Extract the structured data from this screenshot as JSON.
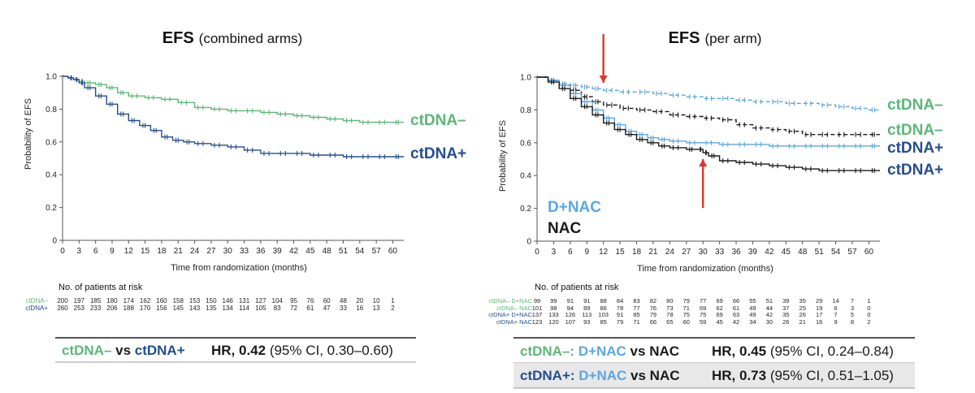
{
  "colors": {
    "ctdna_neg": "#5cb777",
    "ctdna_pos": "#254e8f",
    "dnac": "#5aa6e6",
    "nac": "#1a1a1a",
    "arrow": "#e2332a"
  },
  "chart_data": [
    {
      "type": "line",
      "title": "EFS",
      "subtitle": "(combined arms)",
      "xlabel": "Time from randomization (months)",
      "ylabel": "Probability of EFS",
      "xlim": [
        0,
        62
      ],
      "ylim": [
        0,
        1.0
      ],
      "xticks": [
        0,
        3,
        6,
        9,
        12,
        15,
        18,
        21,
        24,
        27,
        30,
        33,
        36,
        39,
        42,
        45,
        48,
        51,
        54,
        57,
        60
      ],
      "yticks": [
        "0",
        "0.2",
        "0.4",
        "0.6",
        "0.8",
        "1.0"
      ],
      "series": [
        {
          "name": "ctDNA–",
          "color": "#5cb777",
          "dashed": false,
          "x": [
            0,
            1,
            2,
            3,
            4,
            6,
            8,
            10,
            12,
            15,
            18,
            21,
            24,
            27,
            30,
            33,
            36,
            39,
            42,
            45,
            48,
            51,
            54,
            57,
            60,
            62
          ],
          "y": [
            1.0,
            0.99,
            0.98,
            0.97,
            0.96,
            0.95,
            0.93,
            0.9,
            0.88,
            0.87,
            0.86,
            0.84,
            0.81,
            0.8,
            0.79,
            0.79,
            0.78,
            0.77,
            0.76,
            0.75,
            0.74,
            0.73,
            0.72,
            0.72,
            0.72,
            0.72
          ]
        },
        {
          "name": "ctDNA+",
          "color": "#254e8f",
          "dashed": false,
          "x": [
            0,
            1,
            2,
            3,
            4,
            6,
            8,
            10,
            12,
            14,
            16,
            18,
            20,
            22,
            24,
            27,
            30,
            33,
            36,
            39,
            42,
            45,
            48,
            51,
            54,
            57,
            60,
            62
          ],
          "y": [
            1.0,
            0.99,
            0.98,
            0.96,
            0.93,
            0.88,
            0.83,
            0.77,
            0.73,
            0.7,
            0.67,
            0.63,
            0.61,
            0.6,
            0.59,
            0.58,
            0.57,
            0.55,
            0.53,
            0.53,
            0.53,
            0.52,
            0.52,
            0.51,
            0.51,
            0.51,
            0.51,
            0.51
          ]
        }
      ],
      "legend_labels": [
        "ctDNA–",
        "ctDNA+"
      ],
      "risk_table": {
        "heading": "No. of patients at risk",
        "rows": [
          {
            "label": "ctDNA–",
            "color": "#5cb777",
            "values": [
              "200",
              "197",
              "185",
              "180",
              "174",
              "162",
              "160",
              "158",
              "153",
              "150",
              "146",
              "131",
              "127",
              "104",
              "95",
              "76",
              "60",
              "48",
              "20",
              "10",
              "1"
            ]
          },
          {
            "label": "ctDNA+",
            "color": "#254e8f",
            "values": [
              "260",
              "253",
              "233",
              "206",
              "188",
              "170",
              "156",
              "145",
              "143",
              "135",
              "134",
              "114",
              "105",
              "83",
              "72",
              "61",
              "47",
              "33",
              "16",
              "13",
              "2"
            ]
          }
        ]
      }
    },
    {
      "type": "line",
      "title": "EFS",
      "subtitle": "(per arm)",
      "xlabel": "Time from randomization (months)",
      "ylabel": "Probability of EFS",
      "xlim": [
        0,
        62
      ],
      "ylim": [
        0,
        1.0
      ],
      "xticks": [
        0,
        3,
        6,
        9,
        12,
        15,
        18,
        21,
        24,
        27,
        30,
        33,
        36,
        39,
        42,
        45,
        48,
        51,
        54,
        57,
        60
      ],
      "yticks": [
        "0",
        "0.2",
        "0.4",
        "0.6",
        "0.8",
        "1.0"
      ],
      "series": [
        {
          "name": "ctDNA– D+NAC",
          "color": "#5aa6e6",
          "dashed": true,
          "x": [
            0,
            2,
            4,
            6,
            8,
            10,
            12,
            15,
            18,
            21,
            24,
            27,
            30,
            33,
            36,
            39,
            42,
            45,
            48,
            51,
            54,
            57,
            60,
            62
          ],
          "y": [
            1.0,
            0.98,
            0.96,
            0.95,
            0.94,
            0.93,
            0.92,
            0.91,
            0.91,
            0.9,
            0.89,
            0.88,
            0.87,
            0.87,
            0.86,
            0.85,
            0.85,
            0.84,
            0.84,
            0.83,
            0.82,
            0.81,
            0.8,
            0.8
          ]
        },
        {
          "name": "ctDNA– NAC",
          "color": "#1a1a1a",
          "dashed": true,
          "x": [
            0,
            2,
            4,
            6,
            8,
            10,
            12,
            15,
            18,
            21,
            24,
            27,
            30,
            33,
            36,
            39,
            42,
            45,
            48,
            51,
            54,
            57,
            60,
            62
          ],
          "y": [
            1.0,
            0.98,
            0.95,
            0.92,
            0.88,
            0.85,
            0.83,
            0.81,
            0.8,
            0.79,
            0.77,
            0.76,
            0.75,
            0.74,
            0.71,
            0.69,
            0.68,
            0.67,
            0.65,
            0.65,
            0.65,
            0.65,
            0.65,
            0.65
          ]
        },
        {
          "name": "ctDNA+ D+NAC",
          "color": "#5aa6e6",
          "dashed": false,
          "x": [
            0,
            2,
            4,
            6,
            8,
            10,
            12,
            14,
            16,
            18,
            20,
            22,
            24,
            27,
            30,
            33,
            36,
            39,
            42,
            45,
            48,
            51,
            54,
            57,
            60,
            62
          ],
          "y": [
            1.0,
            0.98,
            0.95,
            0.9,
            0.85,
            0.8,
            0.75,
            0.71,
            0.67,
            0.65,
            0.63,
            0.62,
            0.61,
            0.6,
            0.6,
            0.59,
            0.59,
            0.59,
            0.58,
            0.58,
            0.58,
            0.58,
            0.58,
            0.58,
            0.58,
            0.58
          ]
        },
        {
          "name": "ctDNA+ NAC",
          "color": "#1a1a1a",
          "dashed": false,
          "x": [
            0,
            2,
            4,
            6,
            8,
            10,
            12,
            14,
            16,
            18,
            20,
            22,
            24,
            27,
            29,
            30,
            31,
            33,
            36,
            39,
            42,
            45,
            48,
            51,
            54,
            57,
            60,
            62
          ],
          "y": [
            1.0,
            0.97,
            0.93,
            0.87,
            0.82,
            0.77,
            0.72,
            0.68,
            0.65,
            0.62,
            0.6,
            0.58,
            0.57,
            0.56,
            0.56,
            0.54,
            0.52,
            0.49,
            0.48,
            0.47,
            0.46,
            0.45,
            0.44,
            0.43,
            0.43,
            0.43,
            0.43,
            0.43
          ]
        }
      ],
      "legend_labels": [
        "ctDNA–",
        "ctDNA–",
        "ctDNA+",
        "ctDNA+"
      ],
      "arm_labels": [
        "D+NAC",
        "NAC"
      ],
      "arrows": [
        {
          "x": 12,
          "direction": "down"
        },
        {
          "x": 30,
          "direction": "up"
        }
      ],
      "risk_table": {
        "heading": "No. of patients at risk",
        "rows": [
          {
            "label": "ctDNA– D+NAC",
            "color": "#5cb777",
            "values": [
              "99",
              "99",
              "91",
              "91",
              "88",
              "84",
              "83",
              "82",
              "80",
              "79",
              "77",
              "69",
              "66",
              "55",
              "51",
              "39",
              "35",
              "29",
              "14",
              "7",
              "1"
            ]
          },
          {
            "label": "ctDNA– NAC",
            "color": "#5cb777",
            "values": [
              "101",
              "98",
              "94",
              "89",
              "86",
              "78",
              "77",
              "76",
              "73",
              "71",
              "69",
              "62",
              "61",
              "49",
              "44",
              "37",
              "25",
              "19",
              "6",
              "3",
              "0"
            ]
          },
          {
            "label": "ctDNA+ D+NAC",
            "color": "#254e8f",
            "values": [
              "137",
              "133",
              "126",
              "113",
              "103",
              "91",
              "85",
              "79",
              "78",
              "75",
              "75",
              "69",
              "63",
              "49",
              "42",
              "35",
              "26",
              "17",
              "7",
              "5",
              "0"
            ]
          },
          {
            "label": "ctDNA+ NAC",
            "color": "#254e8f",
            "values": [
              "123",
              "120",
              "107",
              "93",
              "85",
              "79",
              "71",
              "66",
              "65",
              "60",
              "59",
              "45",
              "42",
              "34",
              "30",
              "26",
              "21",
              "16",
              "9",
              "8",
              "2"
            ]
          }
        ]
      }
    }
  ],
  "hr_boxes": [
    {
      "comp_a": "ctDNA–",
      "vs": " vs ",
      "comp_b": "ctDNA+",
      "hr_label": "HR, ",
      "hr_value": "0.42",
      "ci": " (95% CI, 0.30–0.60)"
    },
    {
      "comp_a": "ctDNA–:",
      "arm_a": " D+NAC",
      "vs": " vs ",
      "arm_b": "NAC",
      "hr_label": "HR, ",
      "hr_value": "0.45",
      "ci": " (95% CI, 0.24–0.84)"
    },
    {
      "comp_a": "ctDNA+:",
      "arm_a": " D+NAC",
      "vs": " vs ",
      "arm_b": "NAC",
      "hr_label": "HR, ",
      "hr_value": "0.73",
      "ci": " (95% CI, 0.51–1.05)"
    }
  ]
}
